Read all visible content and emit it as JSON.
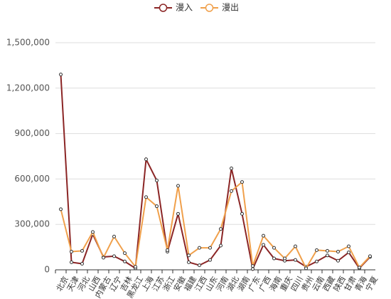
{
  "chart_data": {
    "type": "line",
    "categories": [
      "北京",
      "天津",
      "河北",
      "山西",
      "内蒙古",
      "辽宁",
      "吉林",
      "黑龙江",
      "上海",
      "江苏",
      "浙江",
      "安徽",
      "福建",
      "江西",
      "山东",
      "河南",
      "湖北",
      "湖南",
      "广东",
      "广西",
      "海南",
      "重庆",
      "四川",
      "贵州",
      "云南",
      "西藏",
      "陕西",
      "甘肃",
      "青海",
      "宁夏"
    ],
    "series": [
      {
        "name": "漫入",
        "color": "#8b2525",
        "values": [
          1290000,
          50000,
          40000,
          235000,
          85000,
          90000,
          55000,
          10000,
          730000,
          590000,
          120000,
          370000,
          50000,
          30000,
          65000,
          160000,
          670000,
          370000,
          5000,
          165000,
          75000,
          60000,
          65000,
          20000,
          55000,
          95000,
          60000,
          115000,
          10000,
          85000
        ]
      },
      {
        "name": "漫出",
        "color": "#f0a04b",
        "values": [
          400000,
          120000,
          125000,
          250000,
          80000,
          220000,
          110000,
          20000,
          480000,
          420000,
          130000,
          555000,
          95000,
          145000,
          145000,
          270000,
          520000,
          580000,
          25000,
          225000,
          145000,
          75000,
          155000,
          10000,
          130000,
          125000,
          120000,
          155000,
          15000,
          90000
        ]
      }
    ],
    "ylim": [
      0,
      1500000
    ],
    "yticks": [
      0,
      {
        "value": 300000,
        "label": "300,000"
      },
      {
        "value": 600000,
        "label": "600,000"
      },
      {
        "value": 900000,
        "label": "900,000"
      },
      {
        "value": 1200000,
        "label": "1,200,000"
      },
      {
        "value": 1500000,
        "label": "1,500,000"
      }
    ],
    "grid": true
  }
}
